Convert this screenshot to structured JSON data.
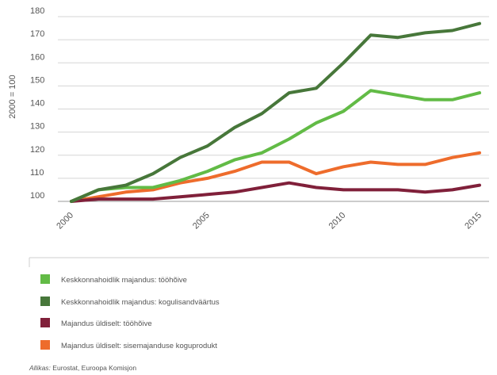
{
  "chart_data": {
    "type": "line",
    "title": "",
    "xlabel": "",
    "ylabel": "2000 = 100",
    "x": [
      2000,
      2001,
      2002,
      2003,
      2004,
      2005,
      2006,
      2007,
      2008,
      2009,
      2010,
      2011,
      2012,
      2013,
      2014,
      2015
    ],
    "x_ticks": [
      "2000",
      "2005",
      "2010",
      "2015"
    ],
    "y_ticks": [
      100,
      110,
      120,
      130,
      140,
      150,
      160,
      170,
      180
    ],
    "ylim": [
      100,
      180
    ],
    "xlim": [
      2000,
      2015
    ],
    "grid": "horizontal",
    "legend_position": "bottom",
    "series": [
      {
        "name": "Keskkonnahoidlik majandus: tööhõive",
        "color": "#62bb46",
        "values": [
          100,
          105,
          106,
          106,
          109,
          113,
          118,
          121,
          127,
          134,
          139,
          148,
          146,
          144,
          144,
          147
        ]
      },
      {
        "name": "Keskkonnahoidlik majandus: kogulisandväärtus",
        "color": "#47773a",
        "values": [
          100,
          105,
          107,
          112,
          119,
          124,
          132,
          138,
          147,
          149,
          160,
          172,
          171,
          173,
          174,
          177
        ]
      },
      {
        "name": "Majandus üldiselt: tööhõive",
        "color": "#80203a",
        "values": [
          100,
          101,
          101,
          101,
          102,
          103,
          104,
          106,
          108,
          106,
          105,
          105,
          105,
          104,
          105,
          107
        ]
      },
      {
        "name": "Majandus üldiselt: sisemajanduse koguprodukt",
        "color": "#ee6c2c",
        "values": [
          100,
          102,
          104,
          105,
          108,
          110,
          113,
          117,
          117,
          112,
          115,
          117,
          116,
          116,
          119,
          121
        ]
      }
    ],
    "source_prefix": "Allikas:",
    "source_text": " Eurostat, Euroopa Komisjon"
  }
}
